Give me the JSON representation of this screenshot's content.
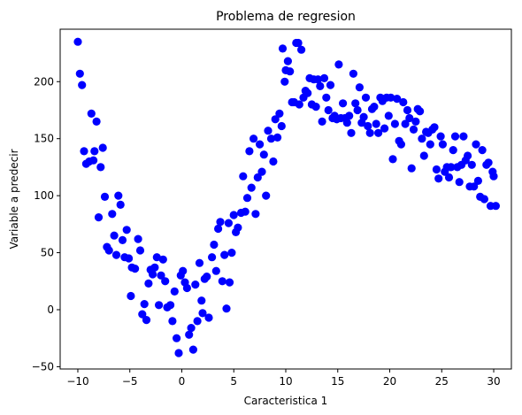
{
  "chart_data": {
    "type": "scatter",
    "title": "Problema de regresion",
    "xlabel": "Caracteristica 1",
    "ylabel": "Variable a predecir",
    "xlim": [
      -11.7,
      31.7
    ],
    "ylim": [
      -52,
      246
    ],
    "xticks": [
      -10,
      -5,
      0,
      5,
      10,
      15,
      20,
      25,
      30
    ],
    "yticks": [
      -50,
      0,
      50,
      100,
      150,
      200
    ],
    "grid": false,
    "legend": "none",
    "marker_color": "#0000ff",
    "points": [
      [
        -10.0,
        235
      ],
      [
        -9.8,
        207
      ],
      [
        -9.6,
        197
      ],
      [
        -9.4,
        139
      ],
      [
        -9.2,
        128
      ],
      [
        -8.9,
        130
      ],
      [
        -8.7,
        172
      ],
      [
        -8.5,
        131
      ],
      [
        -8.4,
        139
      ],
      [
        -8.2,
        165
      ],
      [
        -8.0,
        81
      ],
      [
        -7.8,
        125
      ],
      [
        -7.6,
        142
      ],
      [
        -7.4,
        99
      ],
      [
        -7.2,
        55
      ],
      [
        -7.0,
        52
      ],
      [
        -6.7,
        84
      ],
      [
        -6.5,
        65
      ],
      [
        -6.3,
        48
      ],
      [
        -6.1,
        100
      ],
      [
        -5.9,
        92
      ],
      [
        -5.7,
        61
      ],
      [
        -5.5,
        46
      ],
      [
        -5.3,
        70
      ],
      [
        -5.1,
        45
      ],
      [
        -4.9,
        12
      ],
      [
        -4.8,
        37
      ],
      [
        -4.5,
        36
      ],
      [
        -4.2,
        62
      ],
      [
        -4.0,
        52
      ],
      [
        -3.8,
        -4
      ],
      [
        -3.6,
        5
      ],
      [
        -3.4,
        -9
      ],
      [
        -3.2,
        23
      ],
      [
        -3.0,
        35
      ],
      [
        -2.8,
        31
      ],
      [
        -2.6,
        37
      ],
      [
        -2.4,
        46
      ],
      [
        -2.2,
        4
      ],
      [
        -2.0,
        30
      ],
      [
        -1.8,
        44
      ],
      [
        -1.6,
        25
      ],
      [
        -1.4,
        2
      ],
      [
        -1.1,
        4
      ],
      [
        -0.9,
        -10
      ],
      [
        -0.7,
        16
      ],
      [
        -0.5,
        -25
      ],
      [
        -0.3,
        -38
      ],
      [
        -0.1,
        30
      ],
      [
        0.1,
        34
      ],
      [
        0.3,
        24
      ],
      [
        0.5,
        19
      ],
      [
        0.7,
        -22
      ],
      [
        0.9,
        -16
      ],
      [
        1.1,
        -35
      ],
      [
        1.3,
        22
      ],
      [
        1.5,
        -10
      ],
      [
        1.7,
        41
      ],
      [
        1.9,
        8
      ],
      [
        2.0,
        -3
      ],
      [
        2.2,
        27
      ],
      [
        2.4,
        29
      ],
      [
        2.6,
        -7
      ],
      [
        2.9,
        46
      ],
      [
        3.1,
        57
      ],
      [
        3.3,
        34
      ],
      [
        3.5,
        71
      ],
      [
        3.7,
        77
      ],
      [
        3.9,
        25
      ],
      [
        4.1,
        48
      ],
      [
        4.3,
        1
      ],
      [
        4.5,
        76
      ],
      [
        4.6,
        24
      ],
      [
        4.8,
        50
      ],
      [
        5.0,
        83
      ],
      [
        5.2,
        68
      ],
      [
        5.4,
        72
      ],
      [
        5.7,
        85
      ],
      [
        5.9,
        117
      ],
      [
        6.1,
        86
      ],
      [
        6.3,
        98
      ],
      [
        6.5,
        139
      ],
      [
        6.7,
        107
      ],
      [
        6.9,
        150
      ],
      [
        7.1,
        84
      ],
      [
        7.3,
        116
      ],
      [
        7.5,
        145
      ],
      [
        7.7,
        121
      ],
      [
        7.9,
        136
      ],
      [
        8.1,
        100
      ],
      [
        8.3,
        157
      ],
      [
        8.6,
        150
      ],
      [
        8.8,
        130
      ],
      [
        9.0,
        167
      ],
      [
        9.2,
        151
      ],
      [
        9.4,
        172
      ],
      [
        9.6,
        161
      ],
      [
        9.7,
        229
      ],
      [
        9.9,
        200
      ],
      [
        10.0,
        210
      ],
      [
        10.2,
        218
      ],
      [
        10.4,
        209
      ],
      [
        10.6,
        182
      ],
      [
        10.8,
        182
      ],
      [
        11.0,
        234
      ],
      [
        11.2,
        234
      ],
      [
        11.3,
        180
      ],
      [
        11.5,
        228
      ],
      [
        11.7,
        186
      ],
      [
        11.9,
        192
      ],
      [
        12.1,
        190
      ],
      [
        12.3,
        203
      ],
      [
        12.5,
        180
      ],
      [
        12.7,
        202
      ],
      [
        12.9,
        178
      ],
      [
        13.1,
        202
      ],
      [
        13.3,
        196
      ],
      [
        13.5,
        165
      ],
      [
        13.7,
        203
      ],
      [
        13.9,
        186
      ],
      [
        14.1,
        175
      ],
      [
        14.3,
        197
      ],
      [
        14.5,
        168
      ],
      [
        14.7,
        170
      ],
      [
        14.9,
        167
      ],
      [
        15.1,
        215
      ],
      [
        15.3,
        168
      ],
      [
        15.5,
        181
      ],
      [
        15.7,
        168
      ],
      [
        15.9,
        164
      ],
      [
        16.1,
        170
      ],
      [
        16.3,
        155
      ],
      [
        16.5,
        207
      ],
      [
        16.7,
        181
      ],
      [
        16.9,
        175
      ],
      [
        17.1,
        195
      ],
      [
        17.3,
        164
      ],
      [
        17.5,
        169
      ],
      [
        17.7,
        186
      ],
      [
        17.9,
        161
      ],
      [
        18.1,
        155
      ],
      [
        18.3,
        176
      ],
      [
        18.5,
        178
      ],
      [
        18.7,
        163
      ],
      [
        18.9,
        155
      ],
      [
        19.1,
        186
      ],
      [
        19.3,
        183
      ],
      [
        19.5,
        159
      ],
      [
        19.7,
        186
      ],
      [
        19.9,
        170
      ],
      [
        20.1,
        186
      ],
      [
        20.3,
        132
      ],
      [
        20.5,
        163
      ],
      [
        20.7,
        185
      ],
      [
        20.9,
        148
      ],
      [
        21.1,
        145
      ],
      [
        21.3,
        182
      ],
      [
        21.5,
        163
      ],
      [
        21.7,
        175
      ],
      [
        21.9,
        168
      ],
      [
        22.1,
        124
      ],
      [
        22.3,
        158
      ],
      [
        22.5,
        165
      ],
      [
        22.7,
        176
      ],
      [
        22.9,
        174
      ],
      [
        23.1,
        150
      ],
      [
        23.3,
        135
      ],
      [
        23.5,
        156
      ],
      [
        23.7,
        155
      ],
      [
        23.9,
        145
      ],
      [
        24.1,
        158
      ],
      [
        24.3,
        160
      ],
      [
        24.5,
        123
      ],
      [
        24.7,
        115
      ],
      [
        24.9,
        152
      ],
      [
        25.1,
        145
      ],
      [
        25.3,
        121
      ],
      [
        25.5,
        125
      ],
      [
        25.7,
        116
      ],
      [
        25.9,
        125
      ],
      [
        26.1,
        140
      ],
      [
        26.3,
        152
      ],
      [
        26.5,
        125
      ],
      [
        26.7,
        112
      ],
      [
        26.9,
        127
      ],
      [
        27.1,
        152
      ],
      [
        27.3,
        131
      ],
      [
        27.5,
        135
      ],
      [
        27.7,
        108
      ],
      [
        27.9,
        127
      ],
      [
        28.1,
        108
      ],
      [
        28.3,
        145
      ],
      [
        28.5,
        113
      ],
      [
        28.7,
        99
      ],
      [
        28.9,
        140
      ],
      [
        29.1,
        97
      ],
      [
        29.3,
        127
      ],
      [
        29.5,
        129
      ],
      [
        29.7,
        91
      ],
      [
        29.9,
        121
      ],
      [
        30.0,
        117
      ],
      [
        30.2,
        91
      ]
    ]
  }
}
